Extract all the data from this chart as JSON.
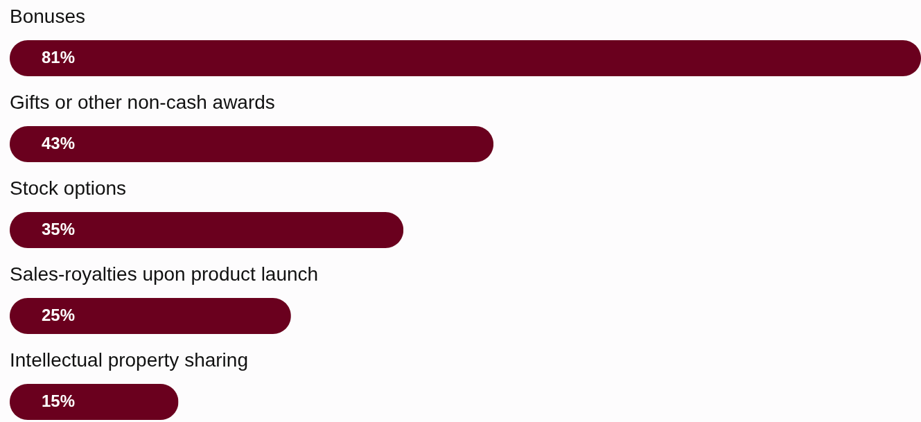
{
  "chart_data": {
    "type": "bar",
    "orientation": "horizontal",
    "categories": [
      "Bonuses",
      "Gifts or other non-cash awards",
      "Stock options",
      "Sales-royalties upon product launch",
      "Intellectual property sharing"
    ],
    "values": [
      81,
      43,
      35,
      25,
      15
    ],
    "value_labels": [
      "81%",
      "43%",
      "35%",
      "25%",
      "15%"
    ],
    "color": "#6a001e"
  }
}
